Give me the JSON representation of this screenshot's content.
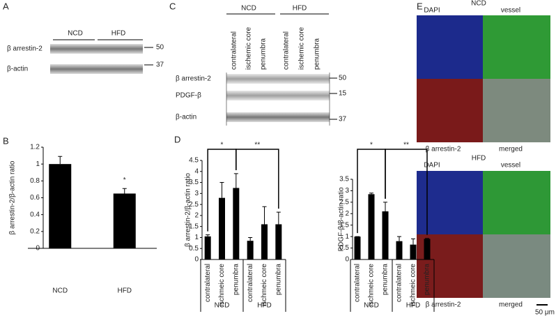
{
  "panel_labels": [
    "A",
    "B",
    "C",
    "D",
    "E"
  ],
  "blot_a": {
    "groups": [
      "NCD",
      "HFD"
    ],
    "rows": [
      "β arrestin-2",
      "β-actin"
    ],
    "markers": [
      "50",
      "37"
    ]
  },
  "blot_c": {
    "groups": [
      "NCD",
      "HFD"
    ],
    "lanes": [
      "contralateral",
      "ischemic core",
      "penumbra",
      "contralateral",
      "ischemic core",
      "penumbra"
    ],
    "rows": [
      "β arrestin-2",
      "PDGF-β",
      "β-actin"
    ],
    "markers": [
      "50",
      "15",
      "37"
    ]
  },
  "chart_data": [
    {
      "type": "bar",
      "y_label": "β arrestin-2/β-actin ratio",
      "categories": [
        "NCD",
        "HFD"
      ],
      "values": [
        1.0,
        0.65
      ],
      "errors": [
        0.09,
        0.06
      ],
      "value_annotations": [
        null,
        "*"
      ],
      "color": "#000000",
      "ylim": [
        0,
        1.2
      ],
      "yticks": [
        0,
        0.2,
        0.4,
        0.6,
        0.8,
        1,
        1.2
      ]
    },
    {
      "type": "bar",
      "y_label": "β arrestin-2/β-actin ratio",
      "categories": [
        "contralateral",
        "ischmeic core",
        "penumbra",
        "contralateral",
        "ischmeic core",
        "penumbra"
      ],
      "groups": [
        "NCD",
        "HFD"
      ],
      "values": [
        1.05,
        2.8,
        3.25,
        0.85,
        1.6,
        1.6
      ],
      "errors": [
        0.07,
        0.7,
        0.65,
        0.15,
        0.8,
        0.55
      ],
      "brackets": [
        "*",
        "**"
      ],
      "color": "#000000",
      "ylim": [
        0,
        4.5
      ],
      "yticks": [
        0,
        0.5,
        1,
        1.5,
        2,
        2.5,
        3,
        3.5,
        4,
        4.5
      ]
    },
    {
      "type": "bar",
      "y_label": "PDGF-β/β-actin ratio",
      "categories": [
        "contralateral",
        "ischmeic core",
        "penumbra",
        "contralateral",
        "ischmeic core",
        "penumbra"
      ],
      "groups": [
        "NCD",
        "HFD"
      ],
      "values": [
        1.0,
        2.85,
        2.1,
        0.8,
        0.65,
        0.9
      ],
      "errors": [
        0.0,
        0.05,
        0.4,
        0.2,
        0.25,
        0.02
      ],
      "brackets": [
        "*",
        "**"
      ],
      "color": "#000000",
      "ylim": [
        0,
        3.5
      ],
      "yticks": [
        0,
        0.5,
        1,
        1.5,
        2,
        2.5,
        3,
        3.5
      ]
    }
  ],
  "panel_e": {
    "groups": [
      "NCD",
      "HFD"
    ],
    "top_labels": [
      "DAPI",
      "vessel"
    ],
    "bottom_labels": [
      "β arrestin-2",
      "merged"
    ],
    "scale_bar": "50 μm"
  }
}
